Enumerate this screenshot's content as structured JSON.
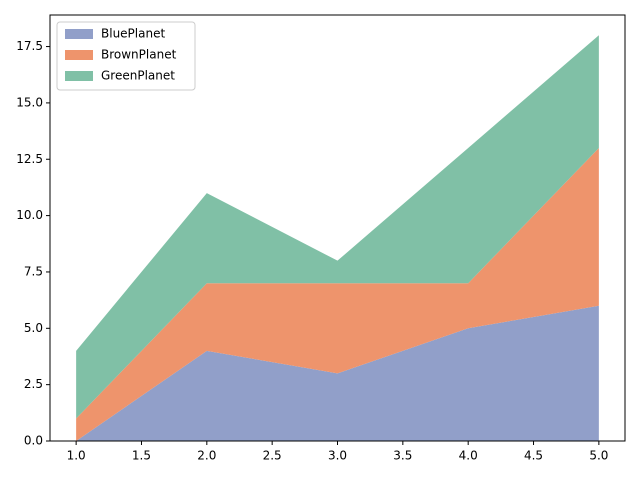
{
  "chart_data": {
    "type": "stacked_area",
    "x": [
      1,
      2,
      3,
      4,
      5
    ],
    "series": [
      {
        "name": "BluePlanet",
        "color": "#919fc9",
        "values": [
          0,
          4,
          3,
          5,
          6
        ]
      },
      {
        "name": "BrownPlanet",
        "color": "#ee946c",
        "values": [
          1,
          3,
          4,
          2,
          7
        ]
      },
      {
        "name": "GreenPlanet",
        "color": "#80c0a6",
        "values": [
          3,
          4,
          1,
          6,
          5
        ]
      }
    ],
    "xlim": [
      0.8,
      5.2
    ],
    "xticks": [
      {
        "value": 1,
        "label": "1.0"
      },
      {
        "value": 1.5,
        "label": "1.5"
      },
      {
        "value": 2,
        "label": "2.0"
      },
      {
        "value": 2.5,
        "label": "2.5"
      },
      {
        "value": 3,
        "label": "3.0"
      },
      {
        "value": 3.5,
        "label": "3.5"
      },
      {
        "value": 4,
        "label": "4.0"
      },
      {
        "value": 4.5,
        "label": "4.5"
      },
      {
        "value": 5,
        "label": "5.0"
      }
    ],
    "ylim": [
      0,
      18.9
    ],
    "yticks": [
      {
        "value": 0,
        "label": "0.0"
      },
      {
        "value": 2.5,
        "label": "2.5"
      },
      {
        "value": 5,
        "label": "5.0"
      },
      {
        "value": 7.5,
        "label": "7.5"
      },
      {
        "value": 10,
        "label": "10.0"
      },
      {
        "value": 12.5,
        "label": "12.5"
      },
      {
        "value": 15,
        "label": "15.0"
      },
      {
        "value": 17.5,
        "label": "17.5"
      }
    ],
    "legend": "upper left",
    "grid": false
  }
}
